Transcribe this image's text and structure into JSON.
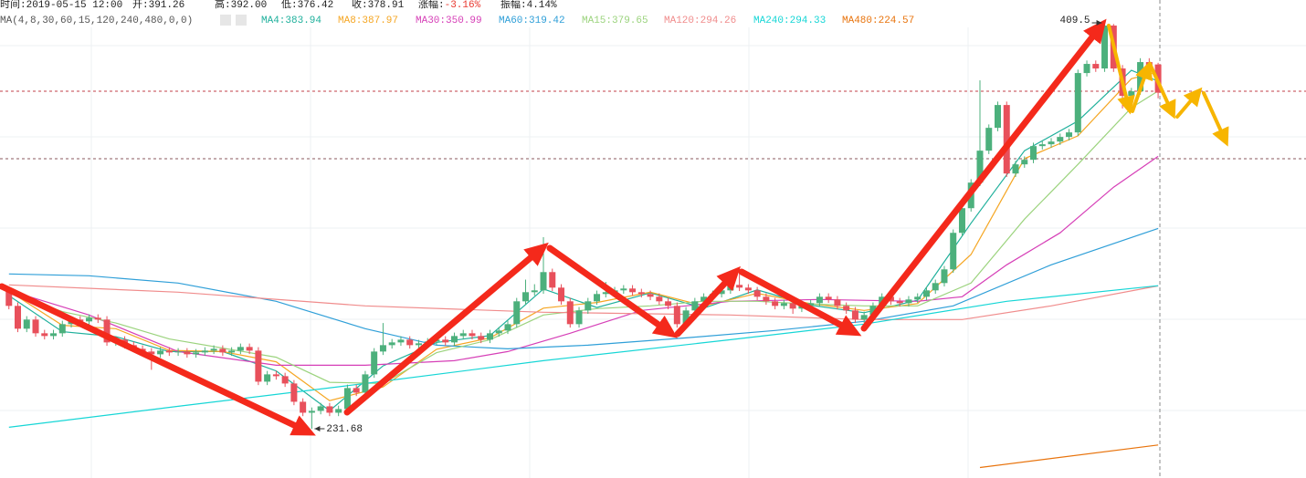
{
  "chart_data": {
    "type": "candlestick",
    "info": [
      {
        "label": "时间:",
        "value": "2019-05-15 12:00"
      },
      {
        "label": "开:",
        "value": "391.26"
      },
      {
        "label": "高:",
        "value": "392.00"
      },
      {
        "label": "低:",
        "value": "376.42"
      },
      {
        "label": "收:",
        "value": "378.91"
      },
      {
        "label": "涨幅:",
        "value": "-3.16%",
        "color": "#e8382f"
      },
      {
        "label": "振幅:",
        "value": "4.14%"
      }
    ],
    "indicator": "MA(4,8,30,60,15,120,240,480,0,0)",
    "xlim": [
      -1,
      145.6
    ],
    "ylim": [
      210.1,
      419.5
    ],
    "up_color": "#4cb07c",
    "down_color": "#e8505b",
    "open": [
      292,
      285.5,
      275.5,
      279.5,
      273.5,
      272.3,
      273.5,
      277.5,
      279.5,
      278.7,
      280.3,
      279.5,
      269.5,
      270.7,
      268.3,
      266.7,
      265.5,
      264.3,
      265.9,
      265.1,
      265.5,
      264.3,
      265.1,
      265.9,
      266.7,
      265.1,
      265.9,
      267.5,
      265.9,
      252.3,
      255.5,
      254.7,
      251.5,
      243.5,
      238.7,
      239.5,
      241.5,
      238.7,
      240.3,
      249.5,
      247.5,
      255.5,
      265.5,
      268.3,
      269.5,
      270.7,
      268.3,
      269.1,
      269.9,
      270.7,
      269.5,
      272.3,
      273.5,
      272.3,
      270.7,
      273.5,
      274.7,
      277.5,
      287.5,
      291.5,
      292.3,
      300.3,
      293.5,
      287.5,
      277.5,
      283.5,
      287.5,
      290.7,
      291.5,
      292.3,
      293.1,
      291.5,
      290.7,
      289.5,
      287.5,
      285.5,
      277.5,
      283.5,
      287.5,
      289.5,
      290.7,
      292.3,
      294.7,
      293.5,
      292.3,
      289.5,
      287.5,
      285.5,
      286.7,
      284.3,
      285.5,
      286.7,
      289.5,
      288.3,
      285.5,
      283.5,
      279.5,
      281.5,
      285.5,
      289.5,
      287.5,
      286.7,
      288.3,
      289.5,
      292.3,
      295.5,
      301.5,
      317.5,
      328.3,
      339.5,
      353.5,
      363.5,
      373.5,
      343.5,
      347.5,
      349.5,
      355.5,
      356.3,
      357.5,
      359.5,
      361.5,
      387.5,
      391.5,
      389.5,
      408.3,
      389.5,
      377.5,
      379.5,
      392.3,
      391.26
    ],
    "high": [
      293.5,
      287,
      281,
      281,
      275,
      275,
      279,
      281,
      281,
      281.8,
      281.8,
      281,
      272.2,
      272.2,
      269.8,
      268.2,
      267,
      267.4,
      267.4,
      267,
      267,
      266.6,
      267.4,
      268.2,
      268.2,
      267.4,
      269,
      269,
      267.4,
      257,
      257,
      256.2,
      253,
      245,
      241,
      243,
      243,
      241.8,
      251,
      251,
      257,
      267,
      278,
      271,
      272.2,
      272.2,
      270.6,
      271.4,
      272.2,
      272.2,
      273.8,
      275,
      275,
      273.8,
      275,
      276.2,
      279,
      289,
      297,
      295,
      315.6,
      301.8,
      295,
      289,
      285,
      289,
      292.2,
      296,
      293.8,
      294.6,
      294.6,
      293,
      292.2,
      291,
      289,
      287,
      285,
      289,
      291,
      292.2,
      293.8,
      296.2,
      299.6,
      295,
      293.8,
      291,
      289,
      288.2,
      288.2,
      287,
      288.2,
      291,
      291,
      289.8,
      287,
      285,
      283,
      287,
      291,
      291,
      289,
      289.8,
      291,
      293.8,
      297,
      303,
      319,
      330,
      341,
      384.3,
      365,
      375,
      375,
      349,
      351,
      357,
      358,
      359,
      361,
      363,
      389,
      393,
      393,
      409.5,
      409,
      391,
      381,
      394,
      394,
      392
    ],
    "low": [
      284,
      274,
      274,
      272,
      270.8,
      270.8,
      272,
      276,
      277.2,
      277.2,
      278,
      268,
      268,
      266.8,
      265.2,
      264,
      257.5,
      262.8,
      263.6,
      263.6,
      262.8,
      262.8,
      263.6,
      264.4,
      263.6,
      263.6,
      264.4,
      264.4,
      250.8,
      250.8,
      253.2,
      250,
      242,
      237.2,
      231.68,
      238,
      237.2,
      237.2,
      238.8,
      246,
      246,
      254,
      264,
      266.8,
      268,
      266.8,
      266.8,
      267.6,
      268.4,
      268,
      268,
      270.8,
      270.8,
      269.2,
      269.2,
      272,
      273.2,
      276,
      286,
      290,
      290.8,
      292,
      286,
      276,
      276,
      282,
      286,
      289.2,
      290,
      290.8,
      290,
      289.2,
      288,
      286,
      284,
      276,
      276,
      282,
      286,
      288,
      289.2,
      290.8,
      292,
      290.8,
      288,
      286,
      284,
      284,
      282,
      282.8,
      284,
      285.2,
      286.8,
      284,
      282,
      278,
      278,
      280,
      284,
      286,
      285.2,
      285.2,
      286.8,
      288,
      290.8,
      294,
      300,
      316,
      326.8,
      338,
      352,
      362,
      342,
      342,
      346,
      348,
      354,
      354.8,
      356,
      358,
      360,
      386,
      388,
      388,
      388,
      372,
      376,
      378,
      389.2,
      376.42
    ],
    "close": [
      285.5,
      275.5,
      279.5,
      273.5,
      272.3,
      273.5,
      277.5,
      279.5,
      278.7,
      280.3,
      279.5,
      269.5,
      270.7,
      268.3,
      266.7,
      265.5,
      264.3,
      265.9,
      265.1,
      265.5,
      264.3,
      265.1,
      265.9,
      266.7,
      265.1,
      265.9,
      267.5,
      265.9,
      252.3,
      255.5,
      254.7,
      251.5,
      243.5,
      238.7,
      239.5,
      241.5,
      238.7,
      240.3,
      249.5,
      247.5,
      255.5,
      265.5,
      268.3,
      269.5,
      270.7,
      268.3,
      269.1,
      269.9,
      270.7,
      269.5,
      272.3,
      273.5,
      272.3,
      270.7,
      273.5,
      274.7,
      277.5,
      287.5,
      291.5,
      292.3,
      300.3,
      293.5,
      287.5,
      277.5,
      283.5,
      287.5,
      290.7,
      291.5,
      292.3,
      293.1,
      291.5,
      290.7,
      289.5,
      287.5,
      285.5,
      277.5,
      283.5,
      287.5,
      289.5,
      290.7,
      292.3,
      294.7,
      293.5,
      292.3,
      289.5,
      287.5,
      285.5,
      286.7,
      284.3,
      285.5,
      286.7,
      289.5,
      288.3,
      285.5,
      283.5,
      279.5,
      281.5,
      285.5,
      289.5,
      287.5,
      286.7,
      288.3,
      289.5,
      292.3,
      295.5,
      301.5,
      317.5,
      328.3,
      339.5,
      353.5,
      363.5,
      373.5,
      343.5,
      347.5,
      349.5,
      355.5,
      356.3,
      357.5,
      359.5,
      361.5,
      387.5,
      391.5,
      389.5,
      408.3,
      389.5,
      377.5,
      379.5,
      392.3,
      390.7,
      378.91
    ],
    "series": [
      {
        "name": "MA4:383.94",
        "color": "#1fb09c",
        "x": [
          0,
          6,
          12,
          18,
          24,
          30,
          36,
          42,
          48,
          54,
          60,
          66,
          72,
          78,
          84,
          90,
          96,
          102,
          108,
          114,
          120,
          126,
          129
        ],
        "values": [
          290,
          274.2,
          272,
          265.5,
          265.5,
          257,
          239.6,
          259.2,
          269.5,
          272.5,
          292.9,
          284.8,
          291.2,
          284.5,
          292.5,
          285.8,
          282.5,
          288,
          321.7,
          353.5,
          366.5,
          388.7,
          383.94
        ]
      },
      {
        "name": "MA8:387.97",
        "color": "#f5a623",
        "x": [
          0,
          6,
          12,
          18,
          24,
          30,
          36,
          42,
          48,
          54,
          60,
          66,
          72,
          78,
          84,
          90,
          96,
          102,
          108,
          114,
          120,
          126,
          129
        ],
        "values": [
          292,
          277,
          275.5,
          266,
          265.5,
          261,
          244,
          250,
          266.5,
          271.5,
          284.5,
          287,
          291.5,
          285.5,
          291,
          286.5,
          283.5,
          286.5,
          308,
          350,
          360,
          385,
          387.97
        ]
      },
      {
        "name": "MA30:350.99",
        "color": "#d63fb7",
        "x": [
          0,
          9,
          19,
          30,
          40,
          50,
          56,
          63,
          71,
          81,
          91,
          102,
          107,
          112,
          118,
          124,
          129
        ],
        "values": [
          292.3,
          281.5,
          265.5,
          259.5,
          259.5,
          261.5,
          265.5,
          273.5,
          283.5,
          287.5,
          288.3,
          287.5,
          289.5,
          303.5,
          317.5,
          337.5,
          350.99
        ]
      },
      {
        "name": "MA60:319.42",
        "color": "#2f9fd8",
        "x": [
          0,
          9,
          19,
          30,
          40,
          48,
          56,
          65,
          76,
          86,
          96,
          106,
          117,
          129
        ],
        "values": [
          299.5,
          298.7,
          295.5,
          287.5,
          275.5,
          268.3,
          266.7,
          268.3,
          271.5,
          274.7,
          278.7,
          285.5,
          303.5,
          319.42
        ]
      },
      {
        "name": "MA15:379.65",
        "color": "#9bd37d",
        "x": [
          0,
          6,
          12,
          18,
          24,
          30,
          36,
          42,
          48,
          54,
          60,
          66,
          72,
          78,
          84,
          90,
          96,
          102,
          108,
          114,
          120,
          126,
          129
        ],
        "values": [
          291.5,
          283,
          278,
          271,
          267,
          263,
          252,
          251.5,
          265,
          270.7,
          281.5,
          284.3,
          285.5,
          287.5,
          287.5,
          286.3,
          285.5,
          285.5,
          295.5,
          323.5,
          347.5,
          372.3,
          379.65
        ]
      },
      {
        "name": "MA120:294.26",
        "color": "#f08c8c",
        "x": [
          0,
          19,
          40,
          60,
          81,
          96,
          107,
          117,
          129
        ],
        "values": [
          294.7,
          291.5,
          285.5,
          282.7,
          281.5,
          279.5,
          279.5,
          285.5,
          294.26
        ]
      },
      {
        "name": "MA240:294.33",
        "color": "#16d6d6",
        "x": [
          0,
          19,
          40,
          60,
          81,
          96,
          112,
          129
        ],
        "values": [
          232.3,
          241.5,
          251.5,
          261.5,
          270.7,
          277.5,
          287.5,
          294.33
        ]
      },
      {
        "name": "MA480:224.57",
        "color": "#e8730c",
        "x": [
          109,
          129
        ],
        "values": [
          214.7,
          224.57
        ]
      }
    ],
    "annotations": [
      {
        "label": "409.5",
        "value": 409.5,
        "x": 123,
        "side": "left"
      },
      {
        "label": "231.68",
        "value": 231.68,
        "x": 34,
        "side": "right"
      }
    ]
  }
}
